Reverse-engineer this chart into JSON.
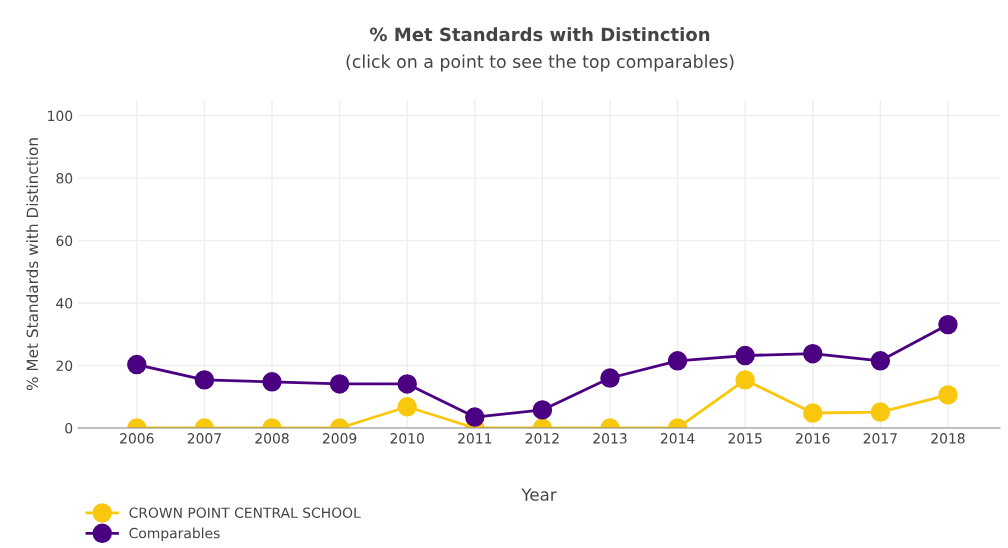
{
  "chart_data": {
    "type": "line",
    "title": "% Met Standards with Distinction",
    "subtitle": "(click on a point to see the top comparables)",
    "xlabel": "Year",
    "ylabel": "% Met Standards with Distinction",
    "categories": [
      "2006",
      "2007",
      "2008",
      "2009",
      "2010",
      "2011",
      "2012",
      "2013",
      "2014",
      "2015",
      "2016",
      "2017",
      "2018"
    ],
    "series": [
      {
        "name": "CROWN POINT CENTRAL SCHOOL",
        "color": "#f9c80e",
        "values": [
          0,
          0,
          0,
          0,
          6.8,
          0,
          0,
          0,
          0,
          15.4,
          4.8,
          5.1,
          10.6
        ]
      },
      {
        "name": "Comparables",
        "color": "#4b0082",
        "values": [
          20.3,
          15.4,
          14.8,
          14.1,
          14.1,
          3.5,
          5.8,
          16,
          21.5,
          23.2,
          23.8,
          21.5,
          33.1
        ]
      }
    ],
    "ylim": [
      0,
      105
    ],
    "yticks": [
      0,
      20,
      40,
      60,
      80,
      100
    ],
    "grid": true,
    "legend": "bottom left",
    "marker": "circle",
    "line_style": "solid"
  }
}
